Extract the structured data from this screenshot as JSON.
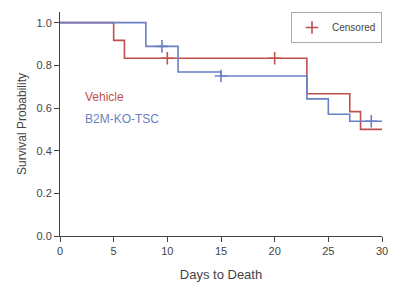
{
  "chart_data": {
    "type": "step",
    "xlabel": "Days to Death",
    "ylabel": "Survival Probability",
    "xlim": [
      0,
      30
    ],
    "ylim": [
      0.0,
      1.05
    ],
    "xticks": [
      0,
      5,
      10,
      15,
      20,
      25,
      30
    ],
    "yticks": [
      {
        "value": 0.0,
        "label": "0.0"
      },
      0.2,
      0.4,
      0.6,
      0.8,
      {
        "value": 1.0,
        "label": "1.0"
      }
    ],
    "grid": false,
    "legend": "upper right",
    "series": [
      {
        "name": "Vehicle",
        "type": "step",
        "color": "#c0504d",
        "x": [
          0,
          5,
          5,
          6,
          6,
          8,
          8,
          23,
          23,
          27,
          27,
          28,
          28,
          29,
          29,
          30
        ],
        "values": [
          1.0,
          1.0,
          0.917,
          0.917,
          0.833,
          0.833,
          0.833,
          0.833,
          0.667,
          0.667,
          0.583,
          0.583,
          0.5,
          0.5,
          0.5,
          0.5
        ]
      },
      {
        "name": "B2M-KO-TSC",
        "type": "step",
        "color": "#6b7fc4",
        "x": [
          0,
          8,
          8,
          11,
          11,
          15,
          15,
          23,
          23,
          25,
          25,
          27,
          27,
          30
        ],
        "values": [
          1.0,
          1.0,
          0.889,
          0.889,
          0.769,
          0.769,
          0.75,
          0.75,
          0.643,
          0.643,
          0.571,
          0.571,
          0.538,
          0.538
        ]
      },
      {
        "name": "Censored",
        "type": "scatter",
        "marker": "+",
        "colors": [
          "#c0504d",
          "#c0504d",
          "#6b7fc4",
          "#6b7fc4",
          "#6b7fc4"
        ],
        "x": [
          10.0,
          20.0,
          9.5,
          15.0,
          29.0
        ],
        "values": [
          0.833,
          0.833,
          0.889,
          0.75,
          0.538
        ]
      }
    ]
  }
}
